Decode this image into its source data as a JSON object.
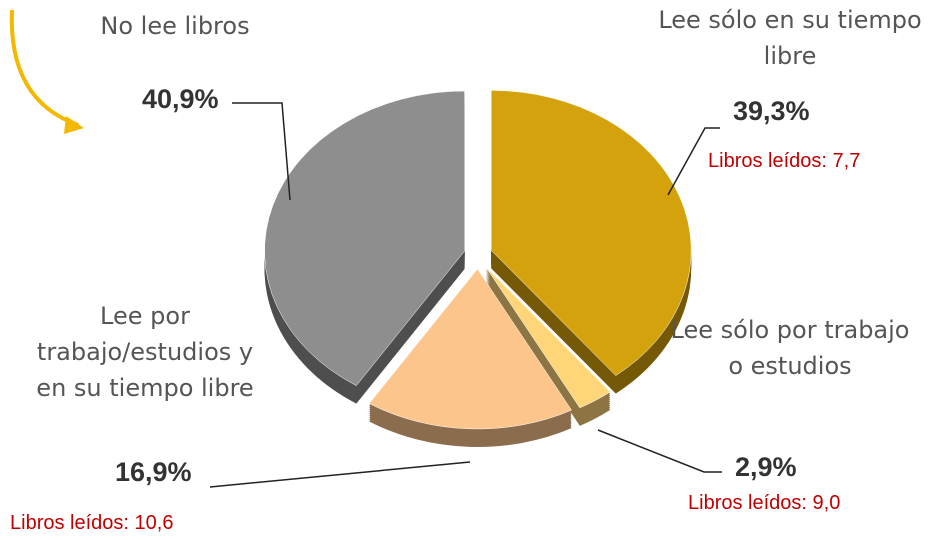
{
  "chart_data": {
    "type": "pie",
    "categories": [
      "Lee sólo en su tiempo libre",
      "Lee sólo por trabajo o estudios",
      "Lee por trabajo/estudios y en su tiempo libre",
      "No lee libros"
    ],
    "values": [
      39.3,
      2.9,
      16.9,
      40.9
    ],
    "value_labels": [
      "39,3%",
      "2,9%",
      "16,9%",
      "40,9%"
    ],
    "colors": [
      "#d4a20c",
      "#ffd57a",
      "#fcc58c",
      "#8e8e8e"
    ],
    "annotations": [
      "Libros leídos: 7,7",
      "Libros leídos: 9,0",
      "Libros leídos: 10,6"
    ]
  }
}
